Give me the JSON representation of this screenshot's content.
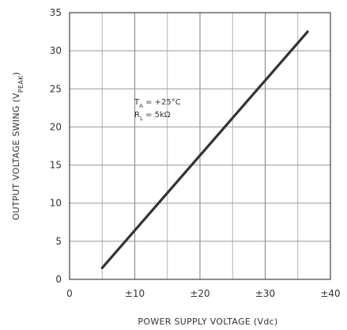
{
  "chart_data": {
    "type": "line",
    "xlabel": "POWER SUPPLY VOLTAGE (Vdc)",
    "ylabel_main": "OUTPUT VOLTAGE SWING (V",
    "ylabel_sub": "PEAK",
    "ylabel_end": ")",
    "xlim": [
      0,
      40
    ],
    "ylim": [
      0,
      35
    ],
    "x_ticks": [
      0,
      10,
      20,
      30,
      40
    ],
    "x_tick_labels": [
      "0",
      "±10",
      "±20",
      "±30",
      "±40"
    ],
    "y_ticks": [
      0,
      5,
      10,
      15,
      20,
      25,
      30,
      35
    ],
    "y_tick_labels": [
      "0",
      "5",
      "10",
      "15",
      "20",
      "25",
      "30",
      "35"
    ],
    "grid": true,
    "annotations": [
      {
        "main": "T",
        "sub": "A",
        "rest": " = +25°C"
      },
      {
        "main": "R",
        "sub": "L",
        "rest": " = 5kΩ"
      }
    ],
    "series": [
      {
        "x": [
          5,
          36.5
        ],
        "y": [
          1.5,
          32.5
        ],
        "color": "#333333"
      }
    ]
  }
}
